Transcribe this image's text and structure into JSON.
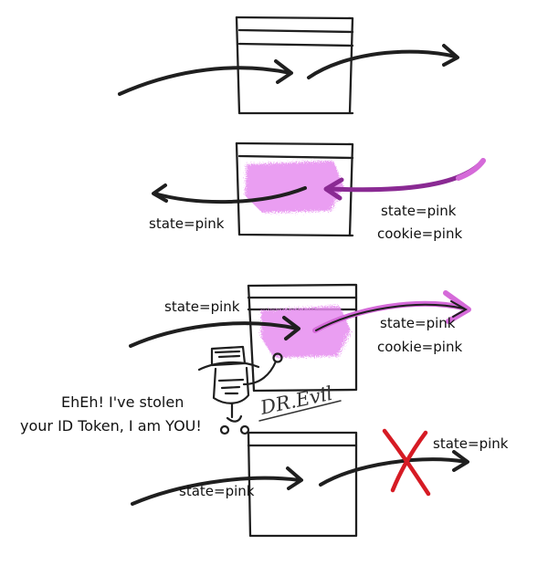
{
  "labels": {
    "panel2_state": "state=pink",
    "panel2_response_state": "state=pink",
    "panel2_response_cookie": "cookie=pink",
    "panel3_request_state": "state=pink",
    "panel3_response_state": "state=pink",
    "panel3_response_cookie": "cookie=pink",
    "panel4_request_state": "state=pink",
    "panel4_response_state": "state=pink"
  },
  "attacker": {
    "speech_line1": "EhEh! I've stolen",
    "speech_line2": "your ID Token, I am YOU!",
    "sign": "DR.Evil"
  },
  "colors": {
    "ink": "#1f1f1f",
    "pink_highlight": "#e78ef0",
    "purple_arrow": "#8a2a93",
    "pink_arrow": "#d56ad9",
    "block_red": "#d61b24"
  }
}
